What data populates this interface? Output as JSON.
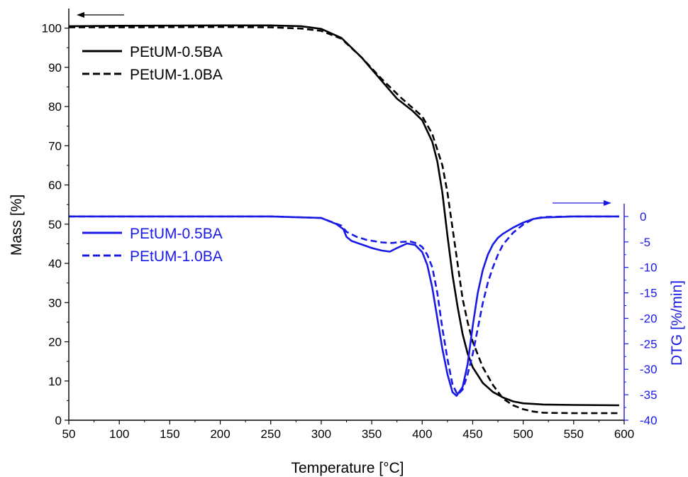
{
  "chart_data": {
    "type": "line",
    "xlabel": "Temperature [°C]",
    "ylabel_left": "Mass [%]",
    "ylabel_right": "DTG [%/min]",
    "xlim": [
      50,
      600
    ],
    "ylim_left": [
      0,
      105
    ],
    "ylim_right": [
      -40,
      2.5
    ],
    "x_ticks": [
      "50",
      "100",
      "150",
      "200",
      "250",
      "300",
      "350",
      "400",
      "450",
      "500",
      "550",
      "600"
    ],
    "y_left_ticks": [
      "0",
      "10",
      "20",
      "30",
      "40",
      "50",
      "60",
      "70",
      "80",
      "90",
      "100"
    ],
    "y_right_ticks": [
      "0",
      "-5",
      "-10",
      "-15",
      "-20",
      "-25",
      "-30",
      "-35",
      "-40"
    ],
    "grid": false,
    "colors": {
      "tga": "#000000",
      "dtg": "#1a1ae6"
    },
    "legend_tga": [
      "PEtUM-0.5BA",
      "PEtUM-1.0BA"
    ],
    "legend_dtg": [
      "PEtUM-0.5BA",
      "PEtUM-1.0BA"
    ],
    "series": [
      {
        "name": "PEtUM-0.5BA",
        "axis": "left",
        "color": "#000000",
        "dash": "solid",
        "x": [
          50,
          100,
          200,
          250,
          280,
          300,
          320,
          340,
          360,
          375,
          390,
          400,
          410,
          415,
          420,
          425,
          430,
          435,
          440,
          445,
          450,
          460,
          470,
          480,
          490,
          500,
          520,
          550,
          595
        ],
        "y": [
          100.5,
          100.6,
          100.7,
          100.7,
          100.5,
          99.8,
          97.5,
          92.5,
          86.5,
          82,
          79,
          76.5,
          71,
          66,
          58,
          47,
          37,
          29,
          22,
          17,
          13.5,
          9.5,
          7.2,
          5.8,
          4.8,
          4.3,
          4.0,
          3.9,
          3.8
        ]
      },
      {
        "name": "PEtUM-1.0BA",
        "axis": "left",
        "color": "#000000",
        "dash": "dash",
        "x": [
          50,
          100,
          200,
          250,
          280,
          300,
          320,
          340,
          360,
          380,
          400,
          410,
          420,
          425,
          430,
          435,
          440,
          445,
          450,
          460,
          470,
          480,
          490,
          500,
          510,
          520,
          550,
          595
        ],
        "y": [
          100.2,
          100.2,
          100.3,
          100.2,
          99.9,
          99.3,
          97.3,
          92.5,
          87,
          82,
          77.5,
          73,
          65,
          58,
          49,
          40,
          31,
          25,
          20,
          13.5,
          9,
          5.5,
          3.8,
          2.8,
          2.2,
          1.9,
          1.8,
          1.8
        ]
      },
      {
        "name": "PEtUM-0.5BA",
        "axis": "right",
        "color": "#1a1ae6",
        "dash": "solid",
        "x": [
          50,
          150,
          250,
          300,
          315,
          322,
          325,
          330,
          340,
          350,
          360,
          368,
          375,
          385,
          393,
          400,
          405,
          410,
          415,
          420,
          425,
          430,
          434,
          440,
          445,
          450,
          455,
          460,
          465,
          470,
          475,
          480,
          490,
          500,
          510,
          520,
          550,
          595
        ],
        "y": [
          0,
          0,
          0,
          -0.3,
          -1.5,
          -2.5,
          -4,
          -4.8,
          -5.5,
          -6.2,
          -6.7,
          -6.9,
          -6.2,
          -5.3,
          -5.6,
          -7,
          -9.5,
          -14,
          -20,
          -26,
          -31,
          -34.5,
          -35.2,
          -33.5,
          -29,
          -21.5,
          -15,
          -10.5,
          -7.5,
          -5.5,
          -4.2,
          -3.4,
          -2.2,
          -1.2,
          -0.5,
          -0.2,
          0,
          0
        ]
      },
      {
        "name": "PEtUM-1.0BA",
        "axis": "right",
        "color": "#1a1ae6",
        "dash": "dash",
        "x": [
          50,
          150,
          250,
          300,
          320,
          325,
          335,
          345,
          360,
          370,
          380,
          388,
          395,
          400,
          405,
          410,
          415,
          420,
          425,
          430,
          435,
          440,
          445,
          450,
          455,
          460,
          465,
          470,
          475,
          480,
          490,
          500,
          510,
          520,
          550,
          595
        ],
        "y": [
          0,
          0,
          0,
          -0.3,
          -1.8,
          -3,
          -4,
          -4.6,
          -5.1,
          -5.2,
          -5,
          -4.9,
          -5.3,
          -6,
          -7.5,
          -10,
          -15,
          -22,
          -28,
          -33,
          -35,
          -34,
          -31,
          -27,
          -22,
          -17,
          -13,
          -10,
          -7.5,
          -5.5,
          -3.2,
          -1.6,
          -0.5,
          -0.1,
          0,
          0
        ]
      }
    ]
  }
}
